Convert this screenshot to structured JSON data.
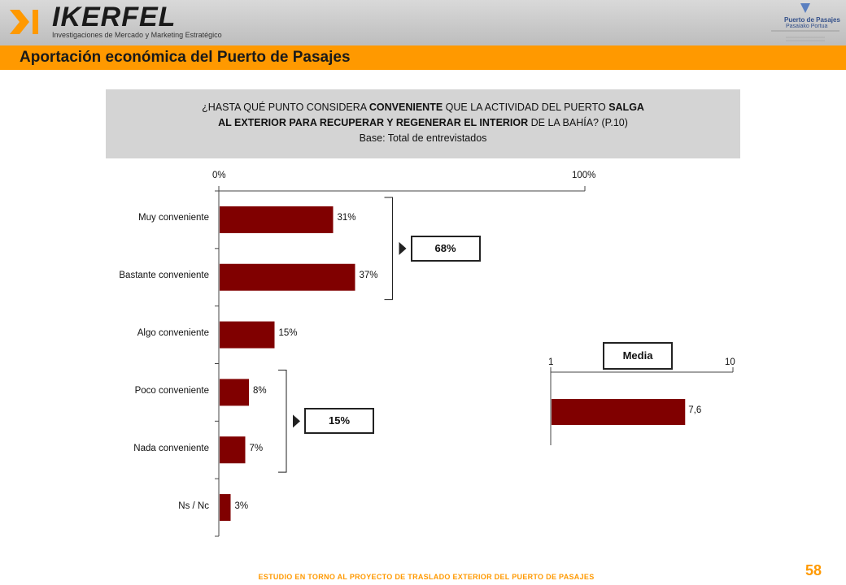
{
  "header": {
    "brand": "IKERFEL",
    "tagline": "Investigaciones de Mercado y Marketing Estratégico",
    "port_name": "Puerto de Pasajes",
    "port_name_basque": "Pasaiako Portua"
  },
  "title": "Aportación económica del Puerto de Pasajes",
  "question": {
    "line1_pre": "¿HASTA QUÉ PUNTO CONSIDERA ",
    "line1_bold1": "CONVENIENTE",
    "line1_mid": " QUE LA ACTIVIDAD DEL PUERTO ",
    "line1_bold2": "SALGA",
    "line2_bold": "AL EXTERIOR PARA RECUPERAR Y REGENERAR EL INTERIOR",
    "line2_post": " DE LA BAHÍA? (P.10)",
    "base": "Base: Total de entrevistados"
  },
  "footer": "ESTUDIO EN TORNO AL PROYECTO DE TRASLADO EXTERIOR DEL PUERTO DE PASAJES",
  "page_number": "58",
  "colors": {
    "bar": "#800000",
    "accent": "#ff9900"
  },
  "chart_data": [
    {
      "type": "bar",
      "orientation": "horizontal",
      "categories": [
        "Muy conveniente",
        "Bastante conveniente",
        "Algo conveniente",
        "Poco conveniente",
        "Nada conveniente",
        "Ns / Nc"
      ],
      "values": [
        31,
        37,
        15,
        8,
        7,
        3
      ],
      "value_labels": [
        "31%",
        "37%",
        "15%",
        "8%",
        "7%",
        "3%"
      ],
      "xlim": [
        0,
        100
      ],
      "x_tick_labels": [
        "0%",
        "100%"
      ],
      "groups": [
        {
          "categories": [
            "Muy conveniente",
            "Bastante conveniente"
          ],
          "label": "68%"
        },
        {
          "categories": [
            "Poco conveniente",
            "Nada conveniente"
          ],
          "label": "15%"
        }
      ]
    },
    {
      "type": "bar",
      "orientation": "horizontal",
      "title": "Media",
      "categories": [
        ""
      ],
      "values": [
        7.6
      ],
      "value_labels": [
        "7,6"
      ],
      "xlim": [
        1,
        10
      ],
      "x_tick_labels": [
        "1",
        "10"
      ]
    }
  ]
}
